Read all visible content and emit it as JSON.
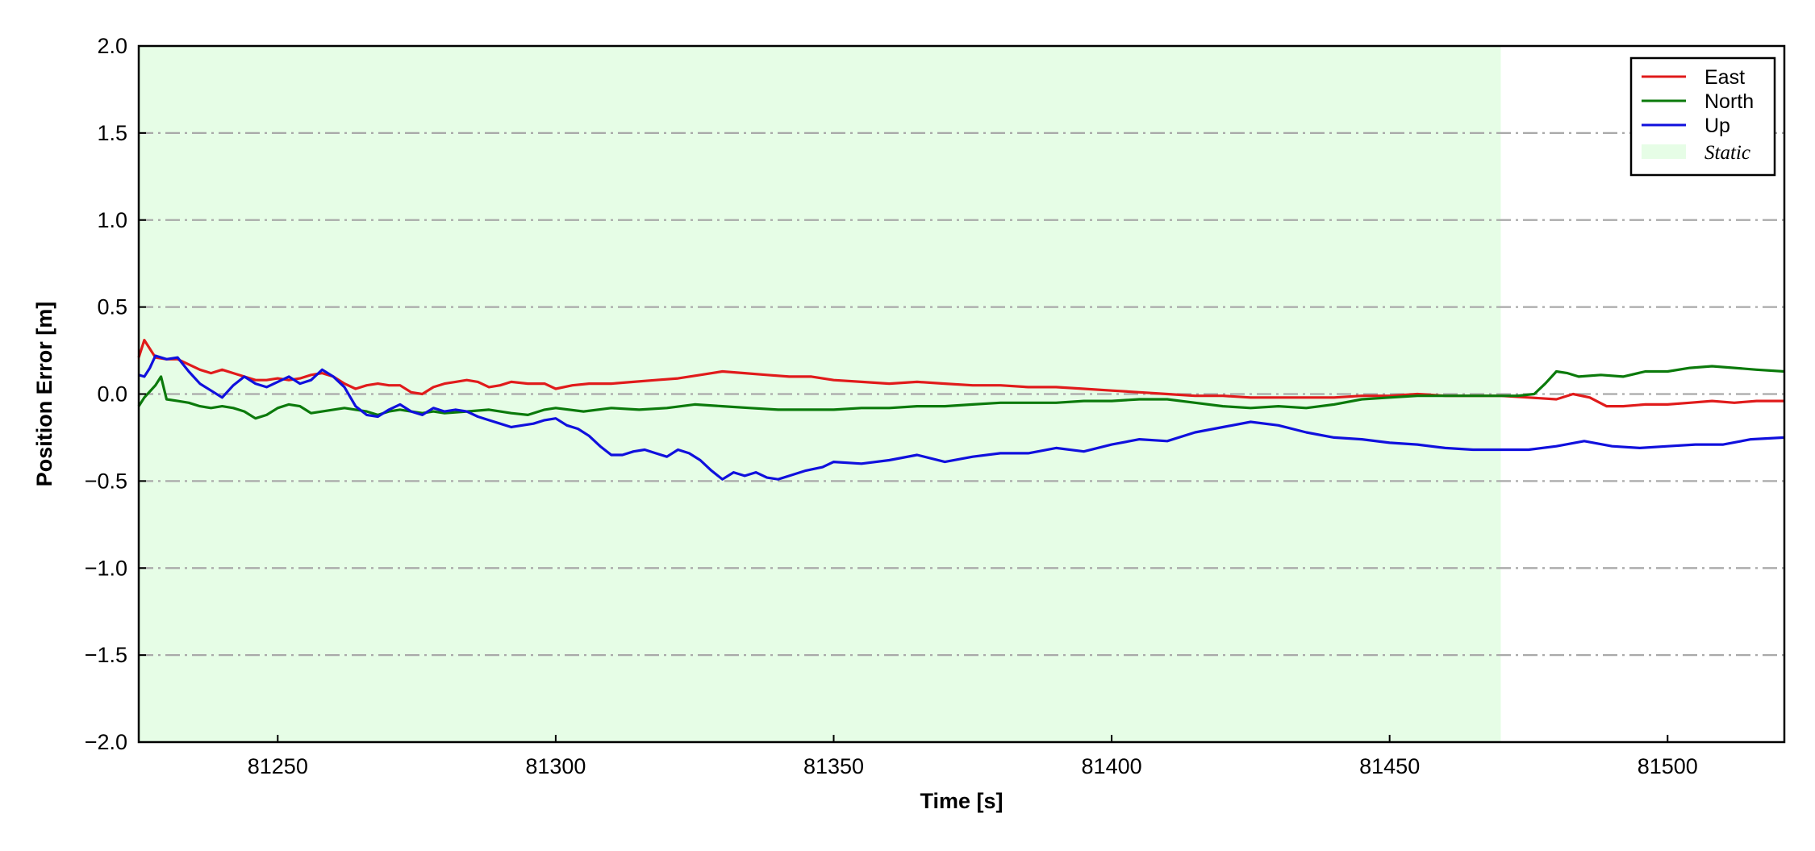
{
  "chart_data": {
    "type": "line",
    "title": "",
    "xlabel": "Time [s]",
    "ylabel": "Position Error [m]",
    "xlim": [
      81225,
      81521
    ],
    "ylim": [
      -2.0,
      2.0
    ],
    "x_ticks": [
      81250,
      81300,
      81350,
      81400,
      81450,
      81500
    ],
    "x_tick_labels": [
      "81250",
      "81300",
      "81350",
      "81400",
      "81450",
      "81500"
    ],
    "y_ticks": [
      2.0,
      1.5,
      1.0,
      0.5,
      0.0,
      -0.5,
      -1.0,
      -1.5,
      -2.0
    ],
    "y_tick_labels": [
      "2.0",
      "1.5",
      "1.0",
      "0.5",
      "0.0",
      "−0.5",
      "−1.0",
      "−1.5",
      "−2.0"
    ],
    "grid": "horizontal dash-dot at y ticks",
    "legend_position": "top-right",
    "shaded_region": {
      "label": "Static",
      "x_range": [
        81225,
        81470
      ],
      "color": "#e6fde6"
    },
    "series": [
      {
        "name": "East",
        "color": "#e01b1b",
        "points": [
          [
            81225,
            0.21
          ],
          [
            81226,
            0.31
          ],
          [
            81228,
            0.21
          ],
          [
            81230,
            0.2
          ],
          [
            81232,
            0.2
          ],
          [
            81234,
            0.17
          ],
          [
            81236,
            0.14
          ],
          [
            81238,
            0.12
          ],
          [
            81240,
            0.14
          ],
          [
            81242,
            0.12
          ],
          [
            81244,
            0.1
          ],
          [
            81246,
            0.08
          ],
          [
            81248,
            0.08
          ],
          [
            81250,
            0.09
          ],
          [
            81252,
            0.08
          ],
          [
            81254,
            0.09
          ],
          [
            81256,
            0.11
          ],
          [
            81258,
            0.12
          ],
          [
            81260,
            0.1
          ],
          [
            81262,
            0.06
          ],
          [
            81264,
            0.03
          ],
          [
            81266,
            0.05
          ],
          [
            81268,
            0.06
          ],
          [
            81270,
            0.05
          ],
          [
            81272,
            0.05
          ],
          [
            81274,
            0.01
          ],
          [
            81276,
            0.0
          ],
          [
            81278,
            0.04
          ],
          [
            81280,
            0.06
          ],
          [
            81282,
            0.07
          ],
          [
            81284,
            0.08
          ],
          [
            81286,
            0.07
          ],
          [
            81288,
            0.04
          ],
          [
            81290,
            0.05
          ],
          [
            81292,
            0.07
          ],
          [
            81295,
            0.06
          ],
          [
            81298,
            0.06
          ],
          [
            81300,
            0.03
          ],
          [
            81303,
            0.05
          ],
          [
            81306,
            0.06
          ],
          [
            81310,
            0.06
          ],
          [
            81314,
            0.07
          ],
          [
            81318,
            0.08
          ],
          [
            81322,
            0.09
          ],
          [
            81326,
            0.11
          ],
          [
            81330,
            0.13
          ],
          [
            81334,
            0.12
          ],
          [
            81338,
            0.11
          ],
          [
            81342,
            0.1
          ],
          [
            81346,
            0.1
          ],
          [
            81350,
            0.08
          ],
          [
            81355,
            0.07
          ],
          [
            81360,
            0.06
          ],
          [
            81365,
            0.07
          ],
          [
            81370,
            0.06
          ],
          [
            81375,
            0.05
          ],
          [
            81380,
            0.05
          ],
          [
            81385,
            0.04
          ],
          [
            81390,
            0.04
          ],
          [
            81395,
            0.03
          ],
          [
            81400,
            0.02
          ],
          [
            81405,
            0.01
          ],
          [
            81410,
            0.0
          ],
          [
            81415,
            -0.01
          ],
          [
            81420,
            -0.01
          ],
          [
            81425,
            -0.02
          ],
          [
            81430,
            -0.02
          ],
          [
            81435,
            -0.02
          ],
          [
            81440,
            -0.02
          ],
          [
            81445,
            -0.01
          ],
          [
            81450,
            -0.01
          ],
          [
            81455,
            0.0
          ],
          [
            81460,
            -0.01
          ],
          [
            81465,
            -0.01
          ],
          [
            81470,
            -0.01
          ],
          [
            81475,
            -0.02
          ],
          [
            81480,
            -0.03
          ],
          [
            81483,
            0.0
          ],
          [
            81486,
            -0.02
          ],
          [
            81489,
            -0.07
          ],
          [
            81492,
            -0.07
          ],
          [
            81496,
            -0.06
          ],
          [
            81500,
            -0.06
          ],
          [
            81504,
            -0.05
          ],
          [
            81508,
            -0.04
          ],
          [
            81512,
            -0.05
          ],
          [
            81516,
            -0.04
          ],
          [
            81521,
            -0.04
          ]
        ]
      },
      {
        "name": "North",
        "color": "#0b7a0b",
        "points": [
          [
            81225,
            -0.07
          ],
          [
            81226,
            -0.02
          ],
          [
            81228,
            0.05
          ],
          [
            81229,
            0.1
          ],
          [
            81230,
            -0.03
          ],
          [
            81232,
            -0.04
          ],
          [
            81234,
            -0.05
          ],
          [
            81236,
            -0.07
          ],
          [
            81238,
            -0.08
          ],
          [
            81240,
            -0.07
          ],
          [
            81242,
            -0.08
          ],
          [
            81244,
            -0.1
          ],
          [
            81246,
            -0.14
          ],
          [
            81248,
            -0.12
          ],
          [
            81250,
            -0.08
          ],
          [
            81252,
            -0.06
          ],
          [
            81254,
            -0.07
          ],
          [
            81256,
            -0.11
          ],
          [
            81258,
            -0.1
          ],
          [
            81260,
            -0.09
          ],
          [
            81262,
            -0.08
          ],
          [
            81264,
            -0.09
          ],
          [
            81266,
            -0.1
          ],
          [
            81268,
            -0.12
          ],
          [
            81270,
            -0.1
          ],
          [
            81272,
            -0.09
          ],
          [
            81274,
            -0.1
          ],
          [
            81276,
            -0.11
          ],
          [
            81278,
            -0.1
          ],
          [
            81280,
            -0.11
          ],
          [
            81284,
            -0.1
          ],
          [
            81288,
            -0.09
          ],
          [
            81292,
            -0.11
          ],
          [
            81295,
            -0.12
          ],
          [
            81298,
            -0.09
          ],
          [
            81300,
            -0.08
          ],
          [
            81305,
            -0.1
          ],
          [
            81310,
            -0.08
          ],
          [
            81315,
            -0.09
          ],
          [
            81320,
            -0.08
          ],
          [
            81325,
            -0.06
          ],
          [
            81330,
            -0.07
          ],
          [
            81335,
            -0.08
          ],
          [
            81340,
            -0.09
          ],
          [
            81345,
            -0.09
          ],
          [
            81350,
            -0.09
          ],
          [
            81355,
            -0.08
          ],
          [
            81360,
            -0.08
          ],
          [
            81365,
            -0.07
          ],
          [
            81370,
            -0.07
          ],
          [
            81375,
            -0.06
          ],
          [
            81380,
            -0.05
          ],
          [
            81385,
            -0.05
          ],
          [
            81390,
            -0.05
          ],
          [
            81395,
            -0.04
          ],
          [
            81400,
            -0.04
          ],
          [
            81405,
            -0.03
          ],
          [
            81410,
            -0.03
          ],
          [
            81415,
            -0.05
          ],
          [
            81420,
            -0.07
          ],
          [
            81425,
            -0.08
          ],
          [
            81430,
            -0.07
          ],
          [
            81435,
            -0.08
          ],
          [
            81440,
            -0.06
          ],
          [
            81445,
            -0.03
          ],
          [
            81450,
            -0.02
          ],
          [
            81455,
            -0.01
          ],
          [
            81460,
            -0.01
          ],
          [
            81465,
            -0.01
          ],
          [
            81470,
            -0.01
          ],
          [
            81473,
            -0.01
          ],
          [
            81476,
            0.0
          ],
          [
            81478,
            0.06
          ],
          [
            81480,
            0.13
          ],
          [
            81482,
            0.12
          ],
          [
            81484,
            0.1
          ],
          [
            81488,
            0.11
          ],
          [
            81492,
            0.1
          ],
          [
            81496,
            0.13
          ],
          [
            81500,
            0.13
          ],
          [
            81504,
            0.15
          ],
          [
            81508,
            0.16
          ],
          [
            81512,
            0.15
          ],
          [
            81516,
            0.14
          ],
          [
            81521,
            0.13
          ]
        ]
      },
      {
        "name": "Up",
        "color": "#1010dd",
        "points": [
          [
            81225,
            0.11
          ],
          [
            81226,
            0.1
          ],
          [
            81227,
            0.15
          ],
          [
            81228,
            0.22
          ],
          [
            81230,
            0.2
          ],
          [
            81232,
            0.21
          ],
          [
            81234,
            0.13
          ],
          [
            81236,
            0.06
          ],
          [
            81238,
            0.02
          ],
          [
            81240,
            -0.02
          ],
          [
            81242,
            0.05
          ],
          [
            81244,
            0.1
          ],
          [
            81246,
            0.06
          ],
          [
            81248,
            0.04
          ],
          [
            81250,
            0.07
          ],
          [
            81252,
            0.1
          ],
          [
            81254,
            0.06
          ],
          [
            81256,
            0.08
          ],
          [
            81258,
            0.14
          ],
          [
            81260,
            0.1
          ],
          [
            81262,
            0.04
          ],
          [
            81264,
            -0.07
          ],
          [
            81266,
            -0.12
          ],
          [
            81268,
            -0.13
          ],
          [
            81270,
            -0.09
          ],
          [
            81272,
            -0.06
          ],
          [
            81274,
            -0.1
          ],
          [
            81276,
            -0.12
          ],
          [
            81278,
            -0.08
          ],
          [
            81280,
            -0.1
          ],
          [
            81282,
            -0.09
          ],
          [
            81284,
            -0.1
          ],
          [
            81286,
            -0.13
          ],
          [
            81288,
            -0.15
          ],
          [
            81290,
            -0.17
          ],
          [
            81292,
            -0.19
          ],
          [
            81294,
            -0.18
          ],
          [
            81296,
            -0.17
          ],
          [
            81298,
            -0.15
          ],
          [
            81300,
            -0.14
          ],
          [
            81302,
            -0.18
          ],
          [
            81304,
            -0.2
          ],
          [
            81306,
            -0.24
          ],
          [
            81308,
            -0.3
          ],
          [
            81310,
            -0.35
          ],
          [
            81312,
            -0.35
          ],
          [
            81314,
            -0.33
          ],
          [
            81316,
            -0.32
          ],
          [
            81318,
            -0.34
          ],
          [
            81320,
            -0.36
          ],
          [
            81322,
            -0.32
          ],
          [
            81324,
            -0.34
          ],
          [
            81326,
            -0.38
          ],
          [
            81328,
            -0.44
          ],
          [
            81330,
            -0.49
          ],
          [
            81332,
            -0.45
          ],
          [
            81334,
            -0.47
          ],
          [
            81336,
            -0.45
          ],
          [
            81338,
            -0.48
          ],
          [
            81340,
            -0.49
          ],
          [
            81342,
            -0.47
          ],
          [
            81345,
            -0.44
          ],
          [
            81348,
            -0.42
          ],
          [
            81350,
            -0.39
          ],
          [
            81355,
            -0.4
          ],
          [
            81360,
            -0.38
          ],
          [
            81365,
            -0.35
          ],
          [
            81370,
            -0.39
          ],
          [
            81375,
            -0.36
          ],
          [
            81380,
            -0.34
          ],
          [
            81385,
            -0.34
          ],
          [
            81390,
            -0.31
          ],
          [
            81395,
            -0.33
          ],
          [
            81400,
            -0.29
          ],
          [
            81405,
            -0.26
          ],
          [
            81410,
            -0.27
          ],
          [
            81415,
            -0.22
          ],
          [
            81420,
            -0.19
          ],
          [
            81425,
            -0.16
          ],
          [
            81430,
            -0.18
          ],
          [
            81435,
            -0.22
          ],
          [
            81440,
            -0.25
          ],
          [
            81445,
            -0.26
          ],
          [
            81450,
            -0.28
          ],
          [
            81455,
            -0.29
          ],
          [
            81460,
            -0.31
          ],
          [
            81465,
            -0.32
          ],
          [
            81470,
            -0.32
          ],
          [
            81475,
            -0.32
          ],
          [
            81480,
            -0.3
          ],
          [
            81485,
            -0.27
          ],
          [
            81490,
            -0.3
          ],
          [
            81495,
            -0.31
          ],
          [
            81500,
            -0.3
          ],
          [
            81505,
            -0.29
          ],
          [
            81510,
            -0.29
          ],
          [
            81515,
            -0.26
          ],
          [
            81521,
            -0.25
          ]
        ]
      }
    ]
  }
}
